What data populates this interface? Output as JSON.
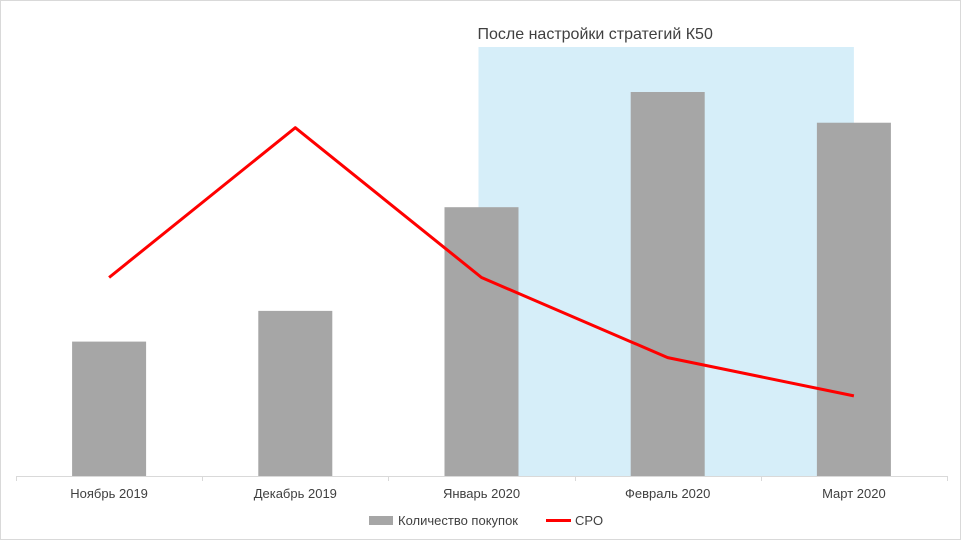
{
  "chart_data": {
    "type": "bar",
    "categories": [
      "Ноябрь  2019",
      "Декабрь  2019",
      "Январь  2020",
      "Февраль  2020",
      "Март  2020"
    ],
    "ylim": [
      0,
      100
    ],
    "y2lim": [
      0,
      100
    ],
    "grid": false,
    "legend_position": "bottom",
    "annotation": {
      "text": "После  настройки  стратегий  К50",
      "from_category": 2.5,
      "to_category": 4.5,
      "color": "#d6eef9"
    },
    "series": [
      {
        "name": "Количество  покупок",
        "type": "bar",
        "color": "#a6a6a6",
        "values": [
          35,
          43,
          70,
          100,
          92
        ]
      },
      {
        "name": "CPO",
        "type": "line",
        "color": "#ff0000",
        "axis": "secondary",
        "values": [
          57,
          100,
          57,
          34,
          23
        ]
      }
    ]
  }
}
